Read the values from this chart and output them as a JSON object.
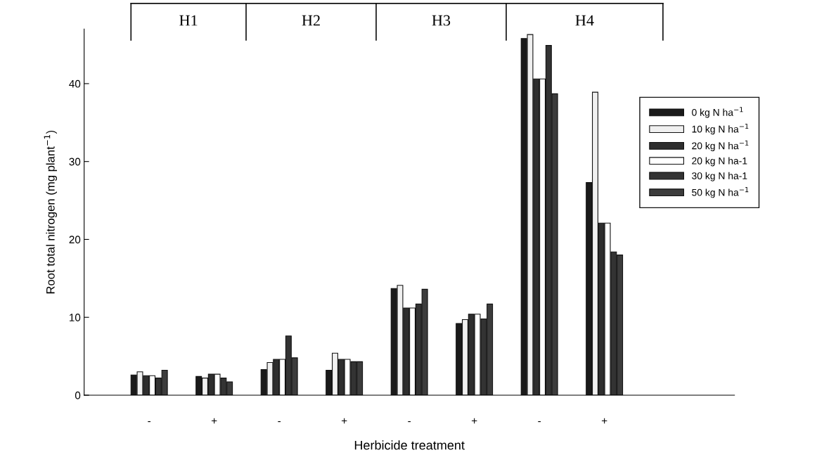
{
  "chart_data": {
    "type": "bar",
    "xlabel": "Herbicide treatment",
    "ylabel": "Root total nitrogen (mg plant$^{−1}$)",
    "categories": [
      "-",
      "+",
      "-",
      "+",
      "-",
      "+",
      "-",
      "+"
    ],
    "series": [
      {
        "name": "0 kg N ha$^{−1}$",
        "color": "#1a1a1a",
        "values": [
          2.6,
          2.4,
          3.3,
          3.2,
          13.7,
          9.2,
          45.8,
          27.3
        ]
      },
      {
        "name": "10 kg N ha$^{−1}$",
        "color": "#f0f0f0",
        "values": [
          3.0,
          2.2,
          4.2,
          5.4,
          14.1,
          9.7,
          46.3,
          38.9
        ]
      },
      {
        "name": "20 kg N ha$^{−1}$",
        "color": "#2e2e2e",
        "values": [
          2.5,
          2.7,
          4.6,
          4.6,
          11.2,
          10.4,
          40.6,
          22.1
        ]
      },
      {
        "name": "20 kg N ha-1",
        "color": "#ffffff",
        "values": [
          2.5,
          2.7,
          4.6,
          4.6,
          11.2,
          10.4,
          40.6,
          22.1
        ]
      },
      {
        "name": "30 kg N ha-1",
        "color": "#333333",
        "values": [
          2.2,
          2.2,
          7.6,
          4.3,
          11.7,
          9.8,
          44.9,
          18.4
        ]
      },
      {
        "name": "50 kg N ha$^{−1}$",
        "color": "#3c3c3c",
        "values": [
          3.2,
          1.7,
          4.8,
          4.3,
          13.6,
          11.7,
          38.7,
          18.0
        ]
      }
    ],
    "ylim": [
      0,
      47
    ],
    "yticks": [
      0,
      10,
      20,
      30,
      40
    ],
    "grid": false,
    "legend": "right",
    "annotations": [
      "H1",
      "H2",
      "H3",
      "H4"
    ]
  }
}
